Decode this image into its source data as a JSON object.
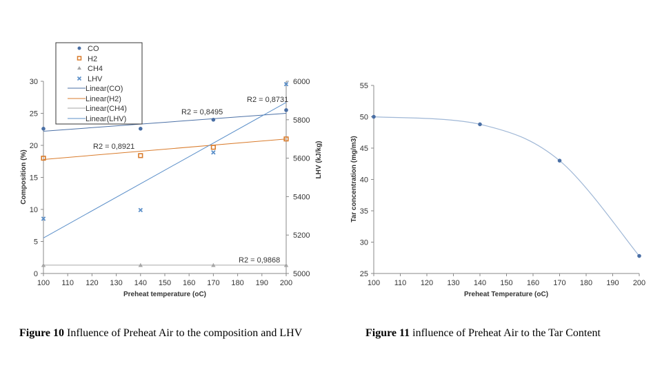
{
  "chart_data": [
    {
      "type": "scatter",
      "xlabel": "Preheat temperature (oC)",
      "ylabel": "Composition (%)",
      "y2label": "LHV (kJ/kg)",
      "xlim": [
        100,
        200
      ],
      "ylim": [
        0,
        30
      ],
      "y2lim": [
        5000,
        6000
      ],
      "xticks": [
        "100",
        "110",
        "120",
        "130",
        "140",
        "150",
        "160",
        "170",
        "180",
        "190",
        "200"
      ],
      "yticks": [
        "0",
        "5",
        "10",
        "15",
        "20",
        "25",
        "30"
      ],
      "y2ticks": [
        "5000",
        "5200",
        "5400",
        "5600",
        "5800",
        "6000"
      ],
      "legend": [
        "CO",
        "H2",
        "CH4",
        "LHV",
        "Linear(CO)",
        "Linear(H2)",
        "Linear(CH4)",
        "Linear(LHV)"
      ],
      "series": [
        {
          "name": "CO",
          "axis": "left",
          "color": "#4a6fa5",
          "x": [
            100,
            140,
            170,
            200
          ],
          "values": [
            22.6,
            22.6,
            24.0,
            25.5
          ],
          "trend": [
            22.2,
            25.0
          ],
          "r2": "R2 = 0,8495"
        },
        {
          "name": "H2",
          "axis": "left",
          "color": "#d97b2b",
          "x": [
            100,
            140,
            170,
            200
          ],
          "values": [
            18.0,
            18.4,
            19.7,
            21.0
          ],
          "trend": [
            17.8,
            21.0
          ],
          "r2": "R2 = 0,8921"
        },
        {
          "name": "CH4",
          "axis": "left",
          "color": "#a6a6a6",
          "x": [
            100,
            140,
            170,
            200
          ],
          "values": [
            1.3,
            1.3,
            1.3,
            1.3
          ],
          "trend": [
            1.3,
            1.3
          ],
          "r2": "R2 = 0,9868"
        },
        {
          "name": "LHV",
          "axis": "right",
          "color": "#5b8fc9",
          "x": [
            100,
            140,
            170,
            200
          ],
          "values": [
            5285,
            5330,
            5630,
            5985
          ],
          "trend": [
            5185,
            5890
          ],
          "r2": "R2 = 0,8731"
        }
      ]
    },
    {
      "type": "line",
      "xlabel": "Preheat Temperature (oC)",
      "ylabel": "Tar concentration (mg/m3)",
      "xlim": [
        100,
        200
      ],
      "ylim": [
        25,
        55
      ],
      "xticks": [
        "100",
        "110",
        "120",
        "130",
        "140",
        "150",
        "160",
        "170",
        "180",
        "190",
        "200"
      ],
      "yticks": [
        "25",
        "30",
        "35",
        "40",
        "45",
        "50",
        "55"
      ],
      "series": [
        {
          "name": "Tar",
          "color": "#4a6fa5",
          "x": [
            100,
            140,
            170,
            200
          ],
          "values": [
            50.0,
            48.8,
            43.0,
            27.8
          ]
        }
      ]
    }
  ],
  "captions": {
    "fig10_bold": "Figure 10",
    "fig10_text": " Influence of Preheat Air to the composition and LHV",
    "fig11_bold": "Figure 11",
    "fig11_text": " influence of Preheat Air to the Tar Content"
  }
}
